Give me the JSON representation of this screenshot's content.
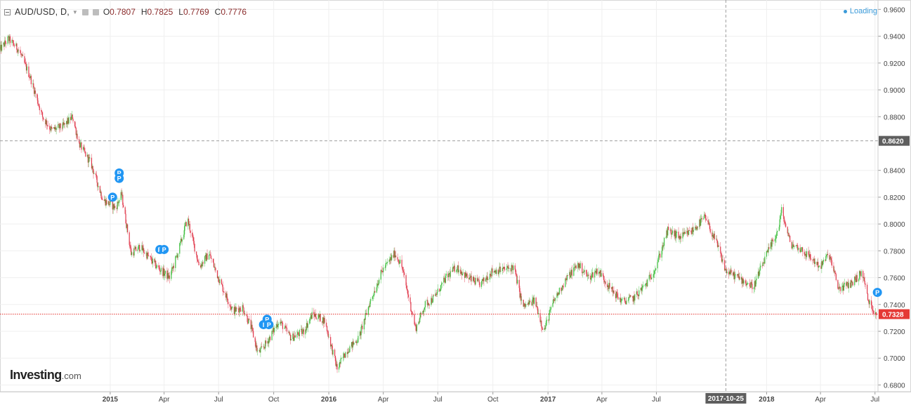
{
  "header": {
    "symbol": "AUD/USD, D,",
    "open_label": "O",
    "open": "0.7807",
    "high_label": "H",
    "high": "0.7825",
    "low_label": "L",
    "low": "0.7769",
    "close_label": "C",
    "close": "0.7776",
    "status": "Loading"
  },
  "logo": {
    "brand": "Investing",
    "suffix": ".com"
  },
  "colors": {
    "up": "#3fbf3f",
    "down": "#e0374a",
    "wick": "#9a9a9a",
    "grid": "#efefef",
    "current_price_line": "#e53935",
    "crosshair": "#9e9e9e",
    "marker": "#2196f3"
  },
  "chart_data": {
    "type": "candlestick",
    "title": "AUD/USD, D,",
    "ylim": [
      0.675,
      0.967
    ],
    "xlim": [
      "2014-07-01",
      "2018-07-06"
    ],
    "y_ticks": [
      "0.9600",
      "0.9400",
      "0.9200",
      "0.9000",
      "0.8800",
      "0.8620",
      "0.8400",
      "0.8200",
      "0.8000",
      "0.7800",
      "0.7600",
      "0.7400",
      "0.7328",
      "0.7200",
      "0.7000",
      "0.6800"
    ],
    "x_ticks": [
      {
        "label": "2015",
        "date": "2015-01-01",
        "bold": true
      },
      {
        "label": "Apr",
        "date": "2015-04-01"
      },
      {
        "label": "Jul",
        "date": "2015-07-01"
      },
      {
        "label": "Oct",
        "date": "2015-10-01"
      },
      {
        "label": "2016",
        "date": "2016-01-01",
        "bold": true
      },
      {
        "label": "Apr",
        "date": "2016-04-01"
      },
      {
        "label": "Jul",
        "date": "2016-07-01"
      },
      {
        "label": "Oct",
        "date": "2016-10-01"
      },
      {
        "label": "2017",
        "date": "2017-01-01",
        "bold": true
      },
      {
        "label": "Apr",
        "date": "2017-04-01"
      },
      {
        "label": "Jul",
        "date": "2017-07-01"
      },
      {
        "label": "2018",
        "date": "2018-01-01",
        "bold": true
      },
      {
        "label": "Apr",
        "date": "2018-04-01"
      },
      {
        "label": "Jul",
        "date": "2018-07-01"
      }
    ],
    "price_path": [
      [
        "2014-07-01",
        0.93
      ],
      [
        "2014-07-15",
        0.938
      ],
      [
        "2014-08-01",
        0.93
      ],
      [
        "2014-08-20",
        0.91
      ],
      [
        "2014-09-10",
        0.88
      ],
      [
        "2014-09-25",
        0.87
      ],
      [
        "2014-10-15",
        0.873
      ],
      [
        "2014-10-30",
        0.88
      ],
      [
        "2014-11-10",
        0.86
      ],
      [
        "2014-11-30",
        0.845
      ],
      [
        "2014-12-20",
        0.818
      ],
      [
        "2015-01-10",
        0.812
      ],
      [
        "2015-01-20",
        0.822
      ],
      [
        "2015-02-05",
        0.778
      ],
      [
        "2015-02-20",
        0.783
      ],
      [
        "2015-03-05",
        0.776
      ],
      [
        "2015-03-20",
        0.768
      ],
      [
        "2015-04-10",
        0.76
      ],
      [
        "2015-04-25",
        0.78
      ],
      [
        "2015-05-10",
        0.804
      ],
      [
        "2015-05-30",
        0.768
      ],
      [
        "2015-06-15",
        0.778
      ],
      [
        "2015-07-05",
        0.755
      ],
      [
        "2015-07-25",
        0.735
      ],
      [
        "2015-08-10",
        0.738
      ],
      [
        "2015-08-25",
        0.722
      ],
      [
        "2015-09-05",
        0.703
      ],
      [
        "2015-09-20",
        0.712
      ],
      [
        "2015-10-10",
        0.728
      ],
      [
        "2015-10-30",
        0.715
      ],
      [
        "2015-11-20",
        0.72
      ],
      [
        "2015-12-05",
        0.733
      ],
      [
        "2015-12-25",
        0.728
      ],
      [
        "2016-01-15",
        0.692
      ],
      [
        "2016-01-30",
        0.705
      ],
      [
        "2016-02-20",
        0.715
      ],
      [
        "2016-03-10",
        0.742
      ],
      [
        "2016-03-30",
        0.765
      ],
      [
        "2016-04-20",
        0.778
      ],
      [
        "2016-05-01",
        0.77
      ],
      [
        "2016-05-25",
        0.722
      ],
      [
        "2016-06-10",
        0.74
      ],
      [
        "2016-06-25",
        0.745
      ],
      [
        "2016-07-15",
        0.76
      ],
      [
        "2016-08-01",
        0.768
      ],
      [
        "2016-08-20",
        0.76
      ],
      [
        "2016-09-10",
        0.755
      ],
      [
        "2016-09-30",
        0.765
      ],
      [
        "2016-10-20",
        0.766
      ],
      [
        "2016-11-05",
        0.768
      ],
      [
        "2016-11-20",
        0.738
      ],
      [
        "2016-12-10",
        0.743
      ],
      [
        "2016-12-25",
        0.72
      ],
      [
        "2017-01-10",
        0.742
      ],
      [
        "2017-01-30",
        0.758
      ],
      [
        "2017-02-20",
        0.77
      ],
      [
        "2017-03-10",
        0.76
      ],
      [
        "2017-03-25",
        0.766
      ],
      [
        "2017-04-15",
        0.752
      ],
      [
        "2017-05-05",
        0.742
      ],
      [
        "2017-05-25",
        0.745
      ],
      [
        "2017-06-15",
        0.756
      ],
      [
        "2017-06-30",
        0.768
      ],
      [
        "2017-07-20",
        0.795
      ],
      [
        "2017-08-10",
        0.79
      ],
      [
        "2017-08-30",
        0.795
      ],
      [
        "2017-09-20",
        0.805
      ],
      [
        "2017-10-10",
        0.785
      ],
      [
        "2017-10-25",
        0.765
      ],
      [
        "2017-11-15",
        0.76
      ],
      [
        "2017-12-10",
        0.753
      ],
      [
        "2017-12-30",
        0.775
      ],
      [
        "2018-01-20",
        0.795
      ],
      [
        "2018-01-26",
        0.81
      ],
      [
        "2018-02-10",
        0.785
      ],
      [
        "2018-02-25",
        0.782
      ],
      [
        "2018-03-15",
        0.775
      ],
      [
        "2018-04-01",
        0.768
      ],
      [
        "2018-04-15",
        0.778
      ],
      [
        "2018-05-01",
        0.752
      ],
      [
        "2018-05-20",
        0.755
      ],
      [
        "2018-06-10",
        0.764
      ],
      [
        "2018-06-20",
        0.742
      ],
      [
        "2018-07-03",
        0.733
      ]
    ],
    "current_price": "0.7328",
    "crosshair": {
      "price": "0.8620",
      "date": "2017-10-25",
      "date_label": "2017-10-25"
    },
    "markers": [
      {
        "label": "P",
        "date": "2015-01-16",
        "price": 0.838
      },
      {
        "label": "P",
        "date": "2015-01-16",
        "price": 0.834
      },
      {
        "label": "P",
        "date": "2015-01-05",
        "price": 0.82
      },
      {
        "label": "P",
        "date": "2015-03-25",
        "price": 0.781
      },
      {
        "label": "P",
        "date": "2015-04-01",
        "price": 0.781
      },
      {
        "label": "P",
        "date": "2015-09-20",
        "price": 0.729
      },
      {
        "label": "I",
        "date": "2015-09-14",
        "price": 0.725
      },
      {
        "label": "P",
        "date": "2015-09-23",
        "price": 0.725
      },
      {
        "label": "P",
        "date": "2018-07-05",
        "price": 0.749
      }
    ],
    "grid": true
  }
}
